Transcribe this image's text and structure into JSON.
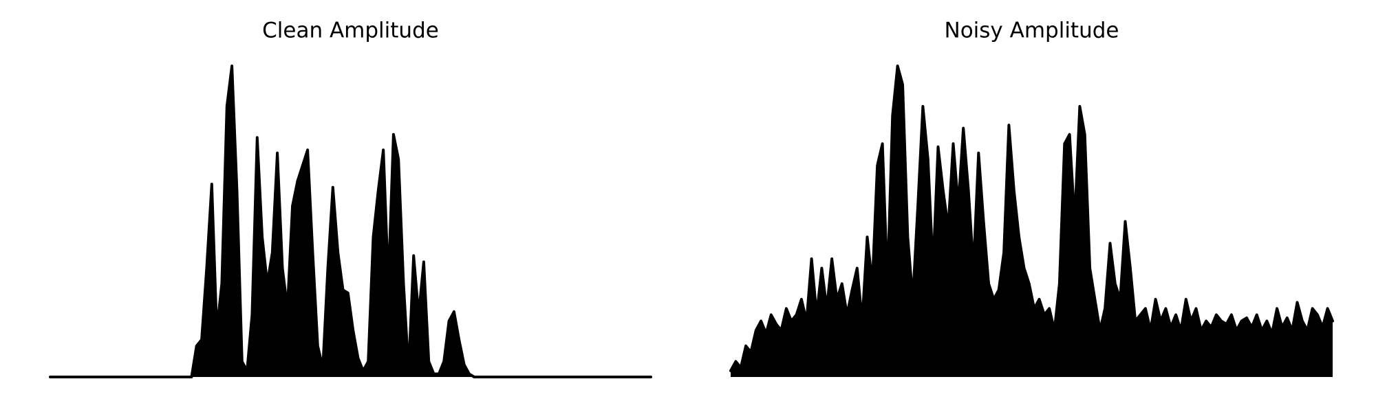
{
  "chart_data": [
    {
      "type": "line",
      "title": "Clean Amplitude",
      "color": "#000000",
      "ylim": [
        0,
        1
      ],
      "values": [
        0,
        0,
        0,
        0,
        0,
        0,
        0,
        0,
        0,
        0,
        0,
        0,
        0,
        0,
        0,
        0,
        0,
        0,
        0,
        0,
        0,
        0,
        0,
        0,
        0,
        0,
        0,
        0,
        0,
        0.1,
        0.12,
        0.35,
        0.62,
        0.15,
        0.3,
        0.87,
        1.0,
        0.6,
        0.05,
        0.02,
        0.2,
        0.77,
        0.45,
        0.3,
        0.4,
        0.72,
        0.35,
        0.22,
        0.55,
        0.63,
        0.68,
        0.73,
        0.4,
        0.1,
        0.03,
        0.35,
        0.61,
        0.4,
        0.28,
        0.27,
        0.15,
        0.06,
        0.02,
        0.05,
        0.45,
        0.6,
        0.73,
        0.3,
        0.78,
        0.7,
        0.3,
        0.02,
        0.39,
        0.2,
        0.37,
        0.05,
        0.01,
        0.01,
        0.05,
        0.18,
        0.21,
        0.12,
        0.04,
        0.01,
        0,
        0,
        0,
        0,
        0,
        0,
        0,
        0,
        0,
        0,
        0,
        0,
        0,
        0,
        0,
        0,
        0,
        0,
        0,
        0,
        0,
        0,
        0,
        0,
        0,
        0,
        0,
        0,
        0,
        0,
        0,
        0,
        0,
        0,
        0,
        0
      ]
    },
    {
      "type": "line",
      "title": "Noisy Amplitude",
      "color": "#000000",
      "ylim": [
        0,
        1
      ],
      "values": [
        0.02,
        0.05,
        0.03,
        0.1,
        0.08,
        0.15,
        0.18,
        0.14,
        0.2,
        0.17,
        0.15,
        0.22,
        0.18,
        0.2,
        0.25,
        0.18,
        0.38,
        0.2,
        0.35,
        0.22,
        0.38,
        0.25,
        0.3,
        0.2,
        0.28,
        0.35,
        0.18,
        0.45,
        0.3,
        0.68,
        0.75,
        0.3,
        0.84,
        1.0,
        0.94,
        0.45,
        0.25,
        0.55,
        0.87,
        0.7,
        0.35,
        0.74,
        0.6,
        0.48,
        0.75,
        0.55,
        0.8,
        0.6,
        0.35,
        0.72,
        0.5,
        0.3,
        0.25,
        0.28,
        0.4,
        0.81,
        0.6,
        0.45,
        0.35,
        0.3,
        0.22,
        0.25,
        0.2,
        0.22,
        0.15,
        0.3,
        0.75,
        0.78,
        0.5,
        0.87,
        0.78,
        0.35,
        0.25,
        0.15,
        0.22,
        0.43,
        0.3,
        0.25,
        0.5,
        0.35,
        0.18,
        0.2,
        0.22,
        0.15,
        0.25,
        0.18,
        0.22,
        0.16,
        0.2,
        0.15,
        0.25,
        0.18,
        0.22,
        0.15,
        0.18,
        0.16,
        0.2,
        0.18,
        0.17,
        0.2,
        0.15,
        0.18,
        0.19,
        0.16,
        0.2,
        0.15,
        0.18,
        0.14,
        0.22,
        0.16,
        0.19,
        0.15,
        0.24,
        0.18,
        0.15,
        0.22,
        0.2,
        0.16,
        0.22,
        0.18
      ]
    }
  ]
}
